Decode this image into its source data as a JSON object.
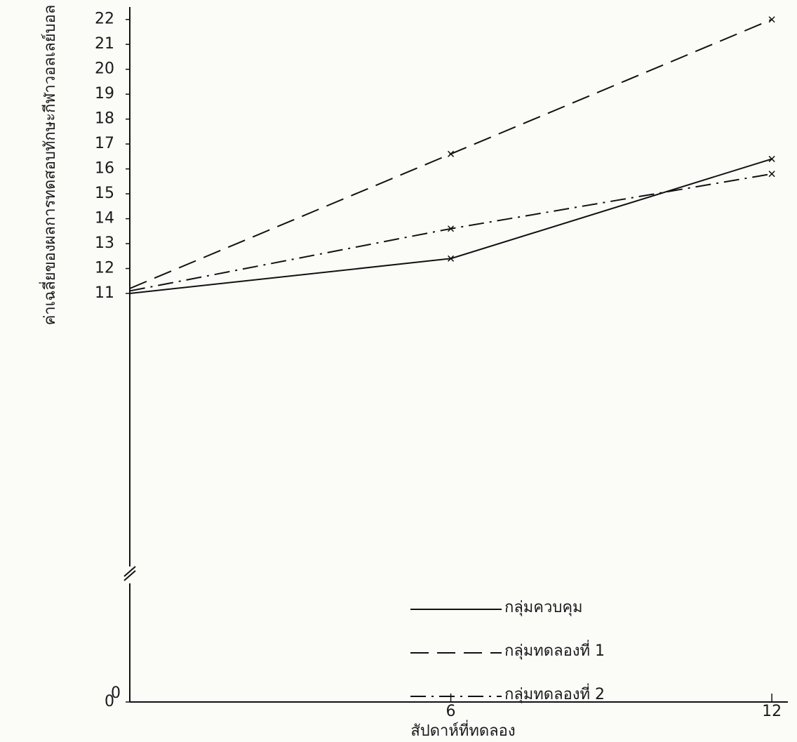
{
  "chart_data": {
    "type": "line",
    "x_label": "สัปดาห์ที่ทดลอง",
    "y_label": "ค่าเฉลี่ยของผลการทดสอบทักษะกีฬาวอลเลย์บอล",
    "x": [
      0,
      6,
      12
    ],
    "xlim": [
      0,
      12.3
    ],
    "xticks": [
      0,
      6,
      12
    ],
    "ylim": [
      0,
      22.5
    ],
    "yticks": [
      0,
      11,
      12,
      13,
      14,
      15,
      16,
      17,
      18,
      19,
      20,
      21,
      22
    ],
    "y_axis_break": true,
    "legend": "lower right",
    "series": [
      {
        "name": "กลุ่มควบคุม",
        "color": "#111111",
        "style": "solid",
        "values": [
          11,
          12.4,
          16.4
        ]
      },
      {
        "name": "กลุ่มทดลองที่ 1",
        "color": "#111111",
        "style": "dashed",
        "values": [
          11.2,
          16.6,
          22
        ]
      },
      {
        "name": "กลุ่มทดลองที่ 2",
        "color": "#111111",
        "style": "dashdot",
        "values": [
          11.1,
          13.6,
          15.8
        ]
      }
    ]
  }
}
